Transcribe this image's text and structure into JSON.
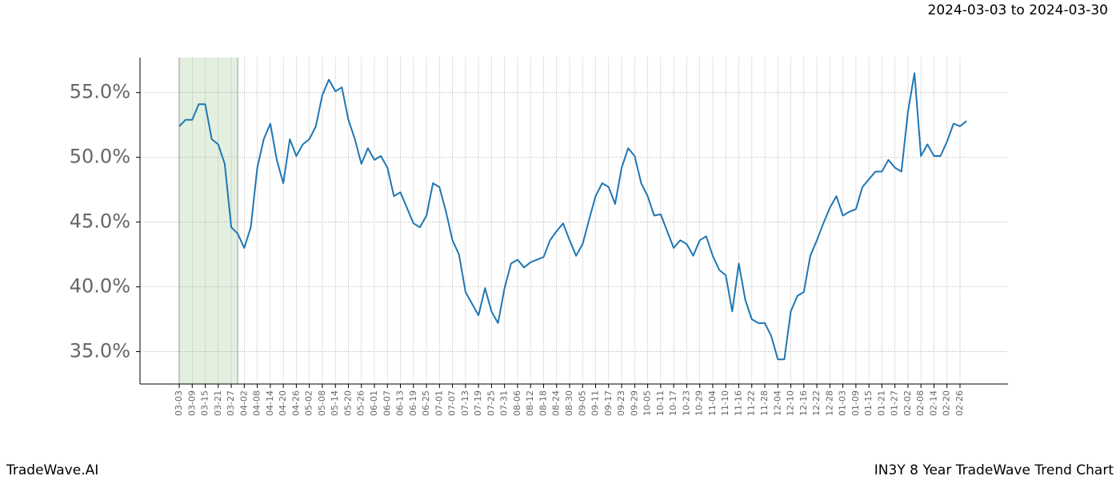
{
  "chart_data": {
    "type": "line",
    "title": "IN3Y 8 Year TradeWave Trend Chart",
    "subtitle": "2024-03-03 to 2024-03-30",
    "brand": "TradeWave.AI",
    "color": "#1f77b4",
    "shade_range": [
      0,
      9
    ],
    "shade_color": "#e3f0e0",
    "grid": true,
    "categories": [
      "03-03",
      null,
      "03-09",
      null,
      "03-15",
      null,
      "03-21",
      null,
      "03-27",
      null,
      "04-02",
      null,
      "04-08",
      null,
      "04-14",
      null,
      "04-20",
      null,
      "04-26",
      null,
      "05-02",
      null,
      "05-08",
      null,
      "05-14",
      null,
      "05-20",
      null,
      "05-26",
      null,
      "06-01",
      null,
      "06-07",
      null,
      "06-13",
      null,
      "06-19",
      null,
      "06-25",
      null,
      "07-01",
      null,
      "07-07",
      null,
      "07-13",
      null,
      "07-19",
      null,
      "07-25",
      null,
      "07-31",
      null,
      "08-06",
      null,
      "08-12",
      null,
      "08-18",
      null,
      "08-24",
      null,
      "08-30",
      null,
      "09-05",
      null,
      "09-11",
      null,
      "09-17",
      null,
      "09-23",
      null,
      "09-29",
      null,
      "10-05",
      null,
      "10-11",
      null,
      "10-17",
      null,
      "10-23",
      null,
      "10-29",
      null,
      "11-04",
      null,
      "11-10",
      null,
      "11-16",
      null,
      "11-22",
      null,
      "11-28",
      null,
      "12-04",
      null,
      "12-10",
      null,
      "12-16",
      null,
      "12-22",
      null,
      "12-28",
      null,
      "01-03",
      null,
      "01-09",
      null,
      "01-15",
      null,
      "01-21",
      null,
      "01-27",
      null,
      "02-02",
      null,
      "02-08",
      null,
      "02-14",
      null,
      "02-20",
      null,
      "02-26",
      null
    ],
    "values": [
      52.4,
      52.9,
      52.9,
      54.1,
      54.1,
      51.4,
      51.0,
      49.5,
      44.6,
      44.1,
      43.0,
      44.6,
      49.2,
      51.4,
      52.6,
      49.8,
      48.0,
      51.4,
      50.1,
      51.0,
      51.4,
      52.4,
      54.8,
      56.0,
      55.1,
      55.4,
      52.9,
      51.4,
      49.5,
      50.7,
      49.8,
      50.1,
      49.2,
      47.0,
      47.3,
      46.1,
      44.9,
      44.6,
      45.5,
      48.0,
      47.7,
      45.8,
      43.6,
      42.5,
      39.6,
      38.7,
      37.8,
      39.9,
      38.1,
      37.2,
      39.9,
      41.8,
      42.1,
      41.5,
      41.9,
      42.1,
      42.3,
      43.6,
      44.3,
      44.9,
      43.6,
      42.4,
      43.3,
      45.2,
      47.0,
      48.0,
      47.7,
      46.4,
      49.2,
      50.7,
      50.1,
      48.0,
      47.0,
      45.5,
      45.6,
      44.3,
      43.0,
      43.6,
      43.3,
      42.4,
      43.6,
      43.9,
      42.4,
      41.3,
      40.9,
      38.1,
      41.8,
      39.0,
      37.5,
      37.2,
      37.2,
      36.2,
      34.4,
      34.4,
      38.1,
      39.3,
      39.6,
      42.4,
      43.6,
      44.9,
      46.1,
      47.0,
      45.5,
      45.8,
      46.0,
      47.7,
      48.3,
      48.9,
      48.9,
      49.8,
      49.2,
      48.9,
      53.5,
      56.5,
      50.1,
      51.0,
      50.1,
      50.1,
      51.2,
      52.6,
      52.4,
      52.8
    ],
    "ylim": [
      32.5,
      57.7
    ],
    "yticks": [
      {
        "value": 35,
        "label": "35.0%"
      },
      {
        "value": 40,
        "label": "40.0%"
      },
      {
        "value": 45,
        "label": "45.0%"
      },
      {
        "value": 50,
        "label": "50.0%"
      },
      {
        "value": 55,
        "label": "55.0%"
      }
    ]
  }
}
